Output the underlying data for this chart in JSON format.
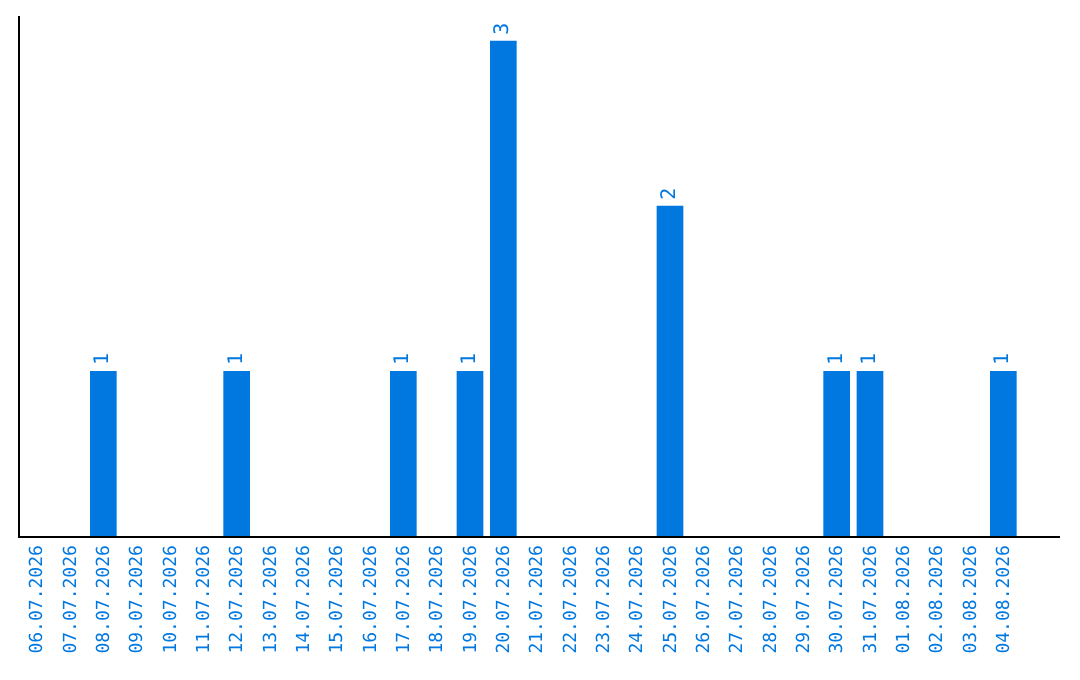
{
  "chart_data": {
    "type": "bar",
    "categories": [
      "06.07.2026",
      "07.07.2026",
      "08.07.2026",
      "09.07.2026",
      "10.07.2026",
      "11.07.2026",
      "12.07.2026",
      "13.07.2026",
      "14.07.2026",
      "15.07.2026",
      "16.07.2026",
      "17.07.2026",
      "18.07.2026",
      "19.07.2026",
      "20.07.2026",
      "21.07.2026",
      "22.07.2026",
      "23.07.2026",
      "24.07.2026",
      "25.07.2026",
      "26.07.2026",
      "27.07.2026",
      "28.07.2026",
      "29.07.2026",
      "30.07.2026",
      "31.07.2026",
      "01.08.2026",
      "02.08.2026",
      "03.08.2026",
      "04.08.2026"
    ],
    "values": [
      0,
      0,
      1,
      0,
      0,
      0,
      1,
      0,
      0,
      0,
      0,
      1,
      0,
      1,
      3,
      0,
      0,
      0,
      0,
      2,
      0,
      0,
      0,
      0,
      1,
      1,
      0,
      0,
      0,
      1
    ],
    "value_labels": [
      null,
      null,
      "1",
      null,
      null,
      null,
      "1",
      null,
      null,
      null,
      null,
      "1",
      null,
      "1",
      "3",
      null,
      null,
      null,
      null,
      "2",
      null,
      null,
      null,
      null,
      "1",
      "1",
      null,
      null,
      null,
      "1"
    ],
    "color": "#0078e0",
    "ylim": [
      0,
      3.15
    ],
    "tick_labels": "x"
  }
}
